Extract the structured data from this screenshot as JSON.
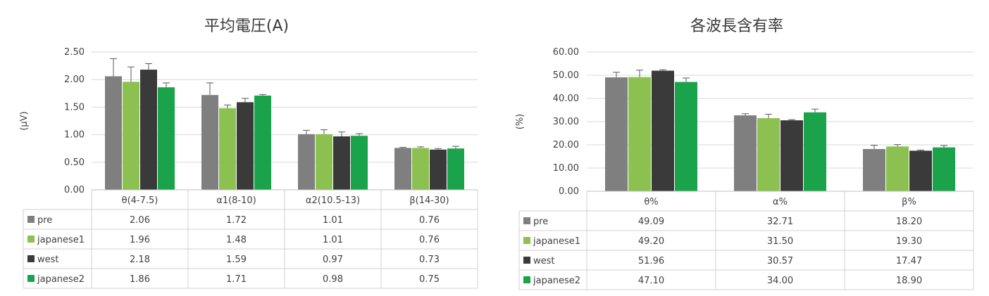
{
  "chart_data": [
    {
      "type": "bar",
      "title": "平均電圧(A)",
      "ylabel": "(μV)",
      "xlabel": "",
      "ylim": [
        0,
        2.5
      ],
      "yticks": [
        "0.00",
        "0.50",
        "1.00",
        "1.50",
        "2.00",
        "2.50"
      ],
      "grid": true,
      "legend": "data-table",
      "categories": [
        "θ(4-7.5)",
        "α1(8-10)",
        "α2(10.5-13)",
        "β(14-30)"
      ],
      "series": [
        {
          "name": "pre",
          "color": "#7f7f7f",
          "values": [
            2.06,
            1.72,
            1.01,
            0.76
          ],
          "errors": [
            0.32,
            0.22,
            0.07,
            0.01
          ],
          "labels": [
            "2.06",
            "1.72",
            "1.01",
            "0.76"
          ]
        },
        {
          "name": "japanese1",
          "color": "#8cc152",
          "values": [
            1.96,
            1.48,
            1.01,
            0.76
          ],
          "errors": [
            0.27,
            0.06,
            0.08,
            0.02
          ],
          "labels": [
            "1.96",
            "1.48",
            "1.01",
            "0.76"
          ]
        },
        {
          "name": "west",
          "color": "#3a3a3a",
          "values": [
            2.18,
            1.59,
            0.97,
            0.73
          ],
          "errors": [
            0.11,
            0.07,
            0.08,
            0.02
          ],
          "labels": [
            "2.18",
            "1.59",
            "0.97",
            "0.73"
          ]
        },
        {
          "name": "japanese2",
          "color": "#1aa34a",
          "values": [
            1.86,
            1.71,
            0.98,
            0.75
          ],
          "errors": [
            0.08,
            0.02,
            0.04,
            0.04
          ],
          "labels": [
            "1.86",
            "1.71",
            "0.98",
            "0.75"
          ]
        }
      ]
    },
    {
      "type": "bar",
      "title": "各波長含有率",
      "ylabel": "(%)",
      "xlabel": "",
      "ylim": [
        0,
        60
      ],
      "yticks": [
        "0.00",
        "10.00",
        "20.00",
        "30.00",
        "40.00",
        "50.00",
        "60.00"
      ],
      "grid": true,
      "legend": "data-table",
      "categories": [
        "θ%",
        "α%",
        "β%"
      ],
      "series": [
        {
          "name": "pre",
          "color": "#7f7f7f",
          "values": [
            49.09,
            32.71,
            18.2
          ],
          "errors": [
            2.2,
            0.7,
            1.6
          ],
          "labels": [
            "49.09",
            "32.71",
            "18.20"
          ]
        },
        {
          "name": "japanese1",
          "color": "#8cc152",
          "values": [
            49.2,
            31.5,
            19.3
          ],
          "errors": [
            3.0,
            1.7,
            0.8
          ],
          "labels": [
            "49.20",
            "31.50",
            "19.30"
          ]
        },
        {
          "name": "west",
          "color": "#3a3a3a",
          "values": [
            51.96,
            30.57,
            17.47
          ],
          "errors": [
            0.4,
            0.3,
            0.3
          ],
          "labels": [
            "51.96",
            "30.57",
            "17.47"
          ]
        },
        {
          "name": "japanese2",
          "color": "#1aa34a",
          "values": [
            47.1,
            34.0,
            18.9
          ],
          "errors": [
            1.7,
            1.4,
            0.8
          ],
          "labels": [
            "47.10",
            "34.00",
            "18.90"
          ]
        }
      ]
    }
  ]
}
